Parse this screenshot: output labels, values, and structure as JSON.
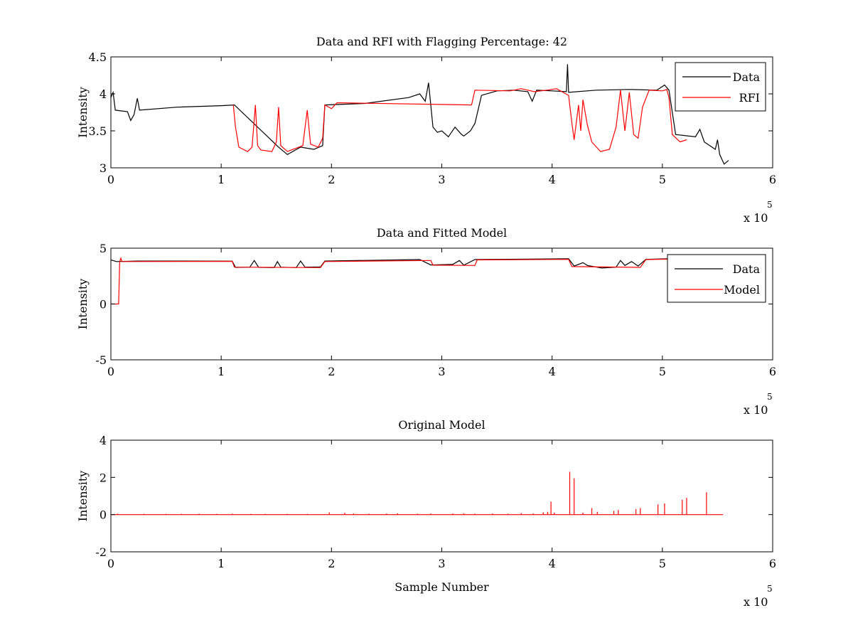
{
  "chart_data": [
    {
      "type": "line",
      "title": "Data and RFI with Flagging Percentage: 42",
      "xlabel": "",
      "ylabel": "Intensity",
      "xlim": [
        0,
        600000
      ],
      "ylim": [
        3,
        4.5
      ],
      "x_ticks": [
        "0",
        "1",
        "2",
        "3",
        "4",
        "5",
        "6"
      ],
      "y_ticks": [
        "3",
        "3.5",
        "4",
        "4.5"
      ],
      "x_multiplier": {
        "base": "x 10",
        "exponent": "5"
      },
      "grid": false,
      "legend_position": "top-right",
      "series": [
        {
          "name": "Data",
          "color": "#000000",
          "points": [
            [
              0,
              3.95
            ],
            [
              2000,
              4.02
            ],
            [
              4000,
              3.78
            ],
            [
              15000,
              3.76
            ],
            [
              18000,
              3.64
            ],
            [
              21000,
              3.72
            ],
            [
              24000,
              3.94
            ],
            [
              26000,
              3.78
            ],
            [
              60000,
              3.82
            ],
            [
              100000,
              3.84
            ],
            [
              112000,
              3.85
            ],
            [
              152000,
              3.28
            ],
            [
              160000,
              3.18
            ],
            [
              172000,
              3.28
            ],
            [
              184000,
              3.25
            ],
            [
              192000,
              3.3
            ],
            [
              194000,
              3.85
            ],
            [
              230000,
              3.87
            ],
            [
              270000,
              3.95
            ],
            [
              280000,
              4.0
            ],
            [
              285000,
              3.9
            ],
            [
              288000,
              4.15
            ],
            [
              290000,
              3.85
            ],
            [
              292000,
              3.55
            ],
            [
              296000,
              3.48
            ],
            [
              300000,
              3.5
            ],
            [
              306000,
              3.42
            ],
            [
              312000,
              3.55
            ],
            [
              318000,
              3.45
            ],
            [
              320000,
              3.43
            ],
            [
              326000,
              3.5
            ],
            [
              330000,
              3.6
            ],
            [
              336000,
              3.98
            ],
            [
              350000,
              4.04
            ],
            [
              365000,
              4.05
            ],
            [
              378000,
              4.03
            ],
            [
              382000,
              3.9
            ],
            [
              386000,
              4.05
            ],
            [
              400000,
              4.04
            ],
            [
              413000,
              4.03
            ],
            [
              414000,
              4.4
            ],
            [
              415000,
              4.02
            ],
            [
              440000,
              4.05
            ],
            [
              470000,
              4.06
            ],
            [
              495000,
              4.05
            ],
            [
              500000,
              4.1
            ],
            [
              502000,
              4.12
            ],
            [
              506000,
              4.05
            ],
            [
              512000,
              3.45
            ],
            [
              530000,
              3.42
            ],
            [
              534000,
              3.52
            ],
            [
              538000,
              3.35
            ],
            [
              548000,
              3.25
            ],
            [
              550000,
              3.38
            ],
            [
              552000,
              3.18
            ],
            [
              556000,
              3.05
            ],
            [
              560000,
              3.1
            ]
          ]
        },
        {
          "name": "RFI",
          "color": "#ff0000",
          "points": [
            [
              111000,
              3.85
            ],
            [
              113000,
              3.55
            ],
            [
              116000,
              3.28
            ],
            [
              124000,
              3.22
            ],
            [
              128000,
              3.28
            ],
            [
              131000,
              3.85
            ],
            [
              133000,
              3.3
            ],
            [
              136000,
              3.24
            ],
            [
              146000,
              3.22
            ],
            [
              150000,
              3.35
            ],
            [
              152000,
              3.82
            ],
            [
              154000,
              3.3
            ],
            [
              160000,
              3.22
            ],
            [
              174000,
              3.3
            ],
            [
              178000,
              3.78
            ],
            [
              181000,
              3.32
            ],
            [
              188000,
              3.28
            ],
            [
              192000,
              3.4
            ],
            [
              194000,
              3.85
            ],
            [
              200000,
              3.8
            ],
            [
              205000,
              3.88
            ],
            [
              327000,
              3.85
            ],
            [
              330000,
              4.05
            ],
            [
              362000,
              4.04
            ],
            [
              372000,
              4.07
            ],
            [
              384000,
              4.03
            ],
            [
              395000,
              4.05
            ],
            [
              404000,
              4.07
            ],
            [
              410000,
              4.02
            ],
            [
              415000,
              3.98
            ],
            [
              418000,
              3.6
            ],
            [
              420000,
              3.38
            ],
            [
              424000,
              3.85
            ],
            [
              426000,
              3.5
            ],
            [
              428000,
              3.92
            ],
            [
              432000,
              3.58
            ],
            [
              436000,
              3.35
            ],
            [
              444000,
              3.22
            ],
            [
              452000,
              3.25
            ],
            [
              458000,
              3.55
            ],
            [
              462000,
              4.05
            ],
            [
              466000,
              3.5
            ],
            [
              470000,
              4.02
            ],
            [
              474000,
              3.45
            ],
            [
              478000,
              3.4
            ],
            [
              482000,
              3.82
            ],
            [
              488000,
              4.05
            ],
            [
              500000,
              4.04
            ],
            [
              504000,
              4.06
            ],
            [
              506000,
              3.95
            ],
            [
              509000,
              3.45
            ],
            [
              516000,
              3.35
            ],
            [
              522000,
              3.38
            ]
          ]
        }
      ]
    },
    {
      "type": "line",
      "title": "Data and Fitted Model",
      "xlabel": "",
      "ylabel": "Intensity",
      "xlim": [
        0,
        600000
      ],
      "ylim": [
        -5,
        5
      ],
      "x_ticks": [
        "0",
        "1",
        "2",
        "3",
        "4",
        "5",
        "6"
      ],
      "y_ticks": [
        "-5",
        "0",
        "5"
      ],
      "x_multiplier": {
        "base": "x 10",
        "exponent": "5"
      },
      "grid": false,
      "legend_position": "top-right",
      "series": [
        {
          "name": "Data",
          "color": "#000000",
          "points": [
            [
              0,
              3.95
            ],
            [
              5000,
              3.8
            ],
            [
              24000,
              3.85
            ],
            [
              110000,
              3.84
            ],
            [
              113000,
              3.28
            ],
            [
              126000,
              3.3
            ],
            [
              130000,
              3.9
            ],
            [
              134000,
              3.28
            ],
            [
              148000,
              3.26
            ],
            [
              151000,
              3.8
            ],
            [
              154000,
              3.3
            ],
            [
              168000,
              3.26
            ],
            [
              172000,
              3.85
            ],
            [
              176000,
              3.3
            ],
            [
              190000,
              3.32
            ],
            [
              194000,
              3.85
            ],
            [
              280000,
              3.98
            ],
            [
              290000,
              3.5
            ],
            [
              310000,
              3.55
            ],
            [
              316000,
              3.9
            ],
            [
              320000,
              3.48
            ],
            [
              330000,
              3.98
            ],
            [
              415000,
              4.05
            ],
            [
              420000,
              3.4
            ],
            [
              428000,
              3.7
            ],
            [
              432000,
              3.45
            ],
            [
              445000,
              3.22
            ],
            [
              458000,
              3.3
            ],
            [
              462000,
              3.9
            ],
            [
              466000,
              3.45
            ],
            [
              472000,
              3.8
            ],
            [
              478000,
              3.4
            ],
            [
              485000,
              4.0
            ],
            [
              505000,
              4.05
            ],
            [
              510000,
              3.45
            ],
            [
              516000,
              3.4
            ]
          ]
        },
        {
          "name": "Model",
          "color": "#ff0000",
          "points": [
            [
              0,
              0
            ],
            [
              7000,
              0
            ],
            [
              8000,
              3.8
            ],
            [
              9000,
              4.1
            ],
            [
              10000,
              3.8
            ],
            [
              110000,
              3.82
            ],
            [
              112000,
              3.3
            ],
            [
              190000,
              3.26
            ],
            [
              194000,
              3.8
            ],
            [
              290000,
              3.9
            ],
            [
              292000,
              3.48
            ],
            [
              330000,
              3.45
            ],
            [
              332000,
              3.95
            ],
            [
              415000,
              4.0
            ],
            [
              418000,
              3.35
            ],
            [
              480000,
              3.28
            ],
            [
              485000,
              3.98
            ],
            [
              505000,
              4.02
            ],
            [
              508000,
              3.5
            ],
            [
              514000,
              3.45
            ]
          ]
        }
      ]
    },
    {
      "type": "line",
      "title": "Original Model",
      "xlabel": "Sample Number",
      "ylabel": "Intensity",
      "xlim": [
        0,
        600000
      ],
      "ylim": [
        -2,
        4
      ],
      "x_ticks": [
        "0",
        "1",
        "2",
        "3",
        "4",
        "5",
        "6"
      ],
      "y_ticks": [
        "-2",
        "0",
        "2",
        "4"
      ],
      "x_multiplier": {
        "base": "x 10",
        "exponent": "5"
      },
      "grid": false,
      "series": [
        {
          "name": "",
          "color": "#ff0000",
          "baseline": 0,
          "x_end": 555000,
          "spikes": [
            [
              6000,
              0.05
            ],
            [
              30000,
              0.04
            ],
            [
              50000,
              0.04
            ],
            [
              64000,
              0.04
            ],
            [
              80000,
              0.05
            ],
            [
              96000,
              0.04
            ],
            [
              110000,
              0.05
            ],
            [
              127000,
              0.04
            ],
            [
              140000,
              0.04
            ],
            [
              160000,
              0.04
            ],
            [
              178000,
              0.04
            ],
            [
              198000,
              0.12
            ],
            [
              212000,
              0.1
            ],
            [
              220000,
              0.06
            ],
            [
              234000,
              0.05
            ],
            [
              250000,
              0.06
            ],
            [
              260000,
              0.07
            ],
            [
              278000,
              0.05
            ],
            [
              290000,
              0.06
            ],
            [
              310000,
              0.06
            ],
            [
              320000,
              0.07
            ],
            [
              330000,
              0.05
            ],
            [
              346000,
              0.06
            ],
            [
              360000,
              0.05
            ],
            [
              372000,
              0.08
            ],
            [
              383000,
              0.06
            ],
            [
              392000,
              0.12
            ],
            [
              396000,
              0.15
            ],
            [
              399000,
              0.7
            ],
            [
              402000,
              0.1
            ],
            [
              416000,
              2.3
            ],
            [
              420000,
              1.95
            ],
            [
              428000,
              0.1
            ],
            [
              436000,
              0.35
            ],
            [
              441000,
              0.15
            ],
            [
              456000,
              0.2
            ],
            [
              460000,
              0.25
            ],
            [
              476000,
              0.3
            ],
            [
              480000,
              0.35
            ],
            [
              496000,
              0.55
            ],
            [
              502000,
              0.6
            ],
            [
              518000,
              0.8
            ],
            [
              522000,
              0.9
            ],
            [
              540000,
              1.2
            ]
          ]
        }
      ]
    }
  ]
}
